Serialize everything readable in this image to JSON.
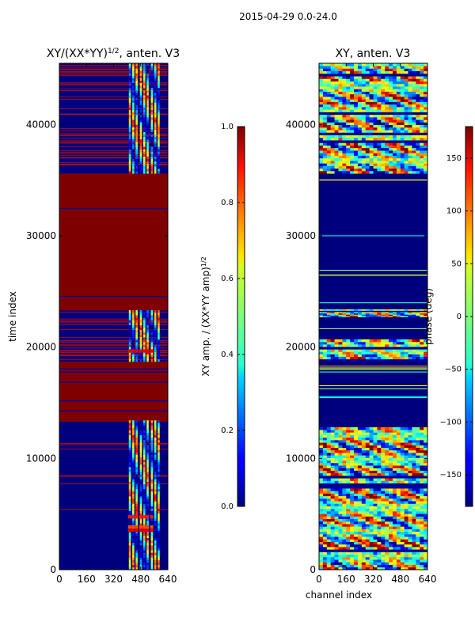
{
  "figure_title": "2015-04-29 0.0-24.0",
  "chart_data": [
    {
      "type": "heatmap",
      "panel": "left",
      "title": "XY/(XX*YY)",
      "title_exponent": "1/2",
      "title_suffix": ", anten. V3",
      "xlabel": "",
      "ylabel": "time index",
      "xlim": [
        0,
        640
      ],
      "ylim": [
        0,
        45500
      ],
      "xticks": [
        0,
        160,
        320,
        480,
        640
      ],
      "yticks": [
        0,
        10000,
        20000,
        30000,
        40000
      ],
      "colormap": "jet",
      "colorbar": {
        "label": "XY amp. / (XX*YY amp)",
        "label_exponent": "1/2",
        "range": [
          0.0,
          1.0
        ],
        "ticks": [
          "0.0",
          "0.2",
          "0.4",
          "0.6",
          "0.8",
          "1.0"
        ]
      },
      "description_bands": [
        {
          "t0": 0,
          "t1": 13300,
          "value": "low (~0.05) with bright channels 410-590"
        },
        {
          "t0": 13300,
          "t1": 18700,
          "value": "saturated ~1.0 with thin gaps"
        },
        {
          "t0": 18700,
          "t1": 23300,
          "value": "low with bright channels 410-590"
        },
        {
          "t0": 23300,
          "t1": 35600,
          "value": "saturated ~1.0"
        },
        {
          "t0": 35600,
          "t1": 45500,
          "value": "low with bright channels 410-590, many flagged rows"
        }
      ]
    },
    {
      "type": "heatmap",
      "panel": "right",
      "title": "XY, anten. V3",
      "xlabel": "channel index",
      "ylabel": "",
      "xlim": [
        0,
        640
      ],
      "ylim": [
        0,
        45500
      ],
      "xticks": [
        0,
        160,
        320,
        480,
        640
      ],
      "yticks": [
        0,
        10000,
        20000,
        30000,
        40000
      ],
      "colormap": "jet",
      "colorbar": {
        "label": "phase (deg)",
        "range": [
          -180,
          180
        ],
        "ticks": [
          "−150",
          "−100",
          "−50",
          "0",
          "50",
          "100",
          "150"
        ]
      }
    }
  ],
  "colors": {
    "jet_low": "#00007f",
    "jet_high": "#7f0000",
    "frame": "#000000"
  }
}
